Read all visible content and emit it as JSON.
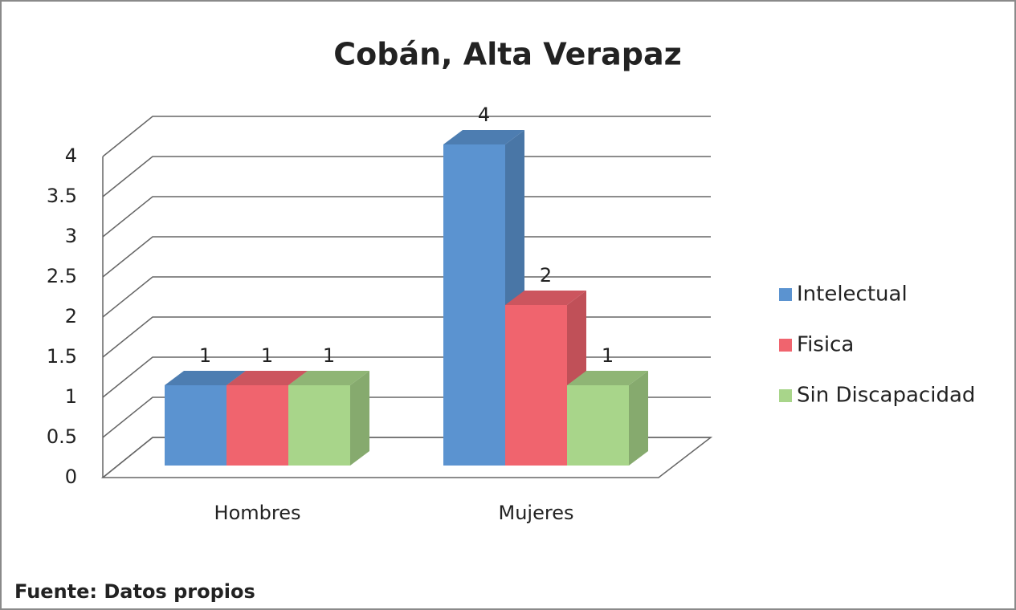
{
  "chart_data": {
    "type": "bar",
    "title": "Cobán, Alta Verapaz",
    "categories": [
      "Hombres",
      "Mujeres"
    ],
    "series": [
      {
        "name": "Intelectual",
        "color": "#5b93d0",
        "values": [
          1,
          4
        ]
      },
      {
        "name": "Fisica",
        "color": "#f0646e",
        "values": [
          1,
          2
        ]
      },
      {
        "name": "Sin Discapacidad",
        "color": "#a8d58a",
        "values": [
          1,
          1
        ]
      }
    ],
    "ylim": [
      0,
      4
    ],
    "yticks": [
      0,
      0.5,
      1,
      1.5,
      2,
      2.5,
      3,
      3.5,
      4
    ],
    "grid": true,
    "legend": "right",
    "source": "Fuente: Datos propios"
  }
}
